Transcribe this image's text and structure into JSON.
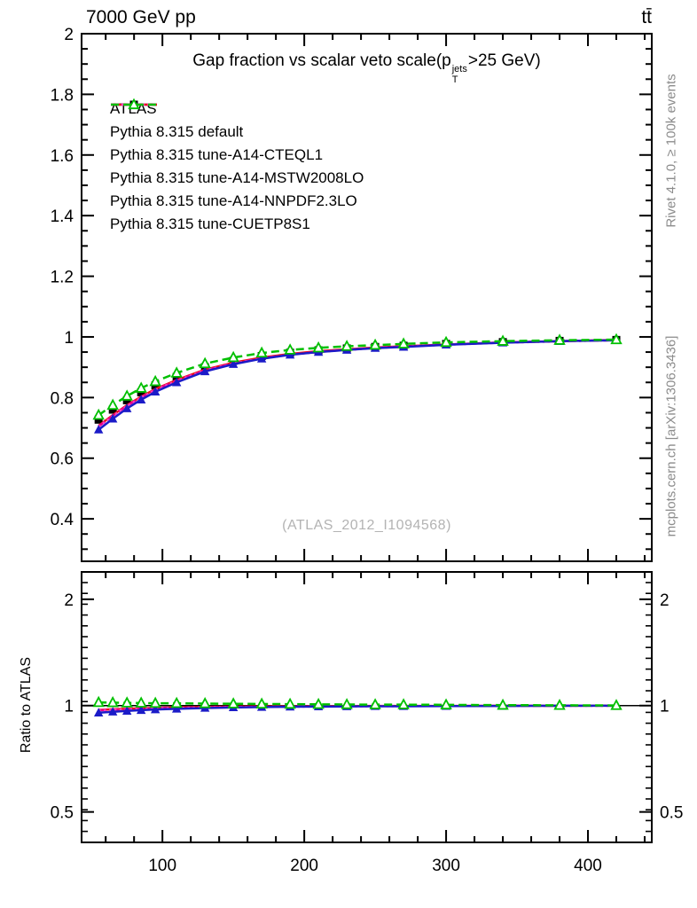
{
  "header": {
    "beam_label": "7000 GeV pp",
    "process_label": "tt̄"
  },
  "titles": {
    "plot_title_prefix": "Gap fraction vs scalar veto scale(p",
    "plot_title_sup": "jets",
    "plot_title_sub": "T",
    "plot_title_suffix": ">25 GeV)",
    "watermark": "(ATLAS_2012_I1094568)",
    "ratio_ylabel": "Ratio to ATLAS",
    "rivet_credit": "Rivet 4.1.0, ≥ 100k events",
    "mcplots_credit": "mcplots.cern.ch [arXiv:1306.3436]"
  },
  "colors": {
    "atlas": "#000000",
    "pythia_default": "#1b1bc8",
    "cteql1": "#ee1111",
    "mstw2008lo": "#e8008c",
    "nnpdf23lo": "#f83fc8",
    "cuetp8s1": "#00c000",
    "credit_gray": "#8c8c8c",
    "watermark_gray": "#b3b3b3"
  },
  "chart_data": {
    "type": "line",
    "title": "Gap fraction vs scalar veto scale (pT_jets > 25 GeV)",
    "xlabel": "",
    "ylabel_top": "",
    "ylabel_bottom": "Ratio to ATLAS",
    "legend_position": "top-left",
    "grid": false,
    "x": [
      55,
      65,
      75,
      85,
      95,
      110,
      130,
      150,
      170,
      190,
      210,
      230,
      250,
      270,
      300,
      340,
      380,
      420
    ],
    "xlim": [
      43,
      445
    ],
    "xticks": [
      100,
      200,
      300,
      400
    ],
    "x_minor_step": 20,
    "main_ylim": [
      0.26,
      2.0
    ],
    "main_yticks": [
      0.4,
      0.6,
      0.8,
      1,
      1.2,
      1.4,
      1.6,
      1.8,
      2
    ],
    "main_y_minor_step": 0.05,
    "ratio_scale": "log",
    "ratio_ylim": [
      0.41,
      2.39
    ],
    "ratio_yticks": [
      0.5,
      1,
      2
    ],
    "ratio_reference": 1,
    "series": [
      {
        "name": "ATLAS",
        "kind": "data",
        "color": "#000000",
        "line": "none",
        "marker": "square-filled",
        "values": [
          0.727,
          0.76,
          0.791,
          0.817,
          0.84,
          0.868,
          0.9,
          0.921,
          0.937,
          0.948,
          0.956,
          0.962,
          0.967,
          0.971,
          0.977,
          0.983,
          0.987,
          0.99
        ]
      },
      {
        "name": "Pythia 8.315 default",
        "kind": "mc",
        "color": "#1b1bc8",
        "line": "solid",
        "marker": "triangle-filled",
        "values": [
          0.694,
          0.73,
          0.764,
          0.793,
          0.819,
          0.85,
          0.886,
          0.91,
          0.928,
          0.941,
          0.95,
          0.957,
          0.963,
          0.967,
          0.974,
          0.981,
          0.986,
          0.989
        ]
      },
      {
        "name": "Pythia 8.315 tune-A14-CTEQL1",
        "kind": "mc",
        "color": "#ee1111",
        "line": "solid",
        "marker": "none",
        "values": [
          0.707,
          0.742,
          0.775,
          0.803,
          0.828,
          0.858,
          0.892,
          0.915,
          0.932,
          0.944,
          0.953,
          0.959,
          0.965,
          0.969,
          0.975,
          0.982,
          0.986,
          0.99
        ]
      },
      {
        "name": "Pythia 8.315 tune-A14-MSTW2008LO",
        "kind": "mc",
        "color": "#e8008c",
        "line": "dashed",
        "marker": "none",
        "values": [
          0.705,
          0.74,
          0.773,
          0.801,
          0.826,
          0.856,
          0.89,
          0.913,
          0.93,
          0.942,
          0.951,
          0.958,
          0.964,
          0.968,
          0.975,
          0.981,
          0.986,
          0.989
        ]
      },
      {
        "name": "Pythia 8.315 tune-A14-NNPDF2.3LO",
        "kind": "mc",
        "color": "#f83fc8",
        "line": "dotted",
        "marker": "none",
        "values": [
          0.704,
          0.739,
          0.772,
          0.8,
          0.825,
          0.855,
          0.889,
          0.912,
          0.929,
          0.941,
          0.95,
          0.957,
          0.963,
          0.968,
          0.974,
          0.981,
          0.985,
          0.989
        ]
      },
      {
        "name": "Pythia 8.315 tune-CUETP8S1",
        "kind": "mc",
        "color": "#00c000",
        "line": "dashed",
        "marker": "triangle-open",
        "values": [
          0.742,
          0.775,
          0.805,
          0.831,
          0.853,
          0.881,
          0.912,
          0.932,
          0.947,
          0.957,
          0.964,
          0.969,
          0.973,
          0.977,
          0.982,
          0.986,
          0.989,
          0.991
        ]
      }
    ]
  }
}
